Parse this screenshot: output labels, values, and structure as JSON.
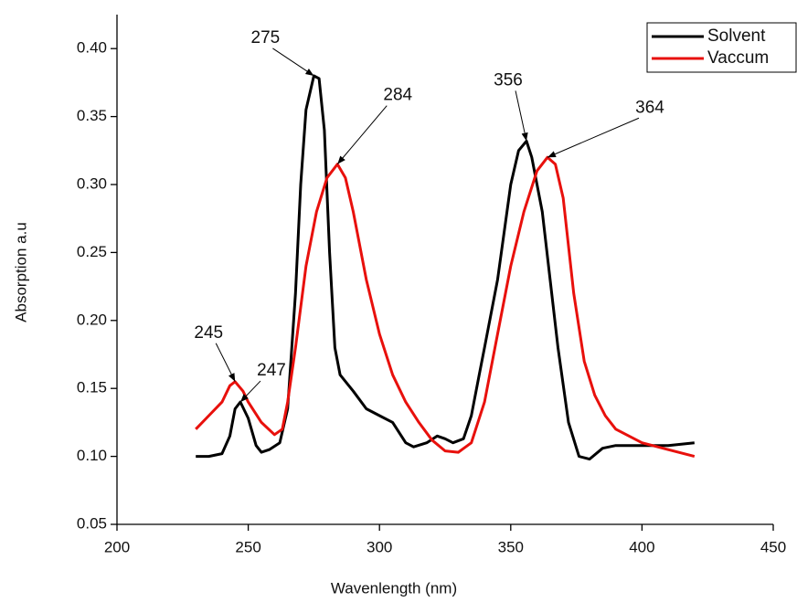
{
  "chart_data": {
    "type": "line",
    "x_label": "Wavenlength (nm)",
    "y_label": "Absorption a.u",
    "xlim": [
      200,
      450
    ],
    "ylim": [
      0.05,
      0.425
    ],
    "xticks": [
      200,
      250,
      300,
      350,
      400,
      450
    ],
    "yticks": [
      {
        "value": 0.05,
        "label": "0.05"
      },
      {
        "value": 0.1,
        "label": "0.10"
      },
      {
        "value": 0.15,
        "label": "0.15"
      },
      {
        "value": 0.2,
        "label": "0.20"
      },
      {
        "value": 0.25,
        "label": "0.25"
      },
      {
        "value": 0.3,
        "label": "0.30"
      },
      {
        "value": 0.35,
        "label": "0.35"
      },
      {
        "value": 0.4,
        "label": "0.40"
      }
    ],
    "grid": false,
    "legend": "top-right",
    "series": [
      {
        "name": "Solvent",
        "color": "#000000",
        "x": [
          230,
          235,
          240,
          243,
          245,
          247,
          250,
          253,
          255,
          258,
          262,
          265,
          268,
          270,
          272,
          275,
          277,
          279,
          281,
          283,
          285,
          290,
          295,
          300,
          305,
          310,
          313,
          318,
          322,
          325,
          328,
          332,
          335,
          338,
          340,
          345,
          350,
          353,
          356,
          358,
          362,
          365,
          368,
          372,
          376,
          380,
          385,
          390,
          400,
          410,
          420
        ],
        "values": [
          0.1,
          0.1,
          0.102,
          0.115,
          0.135,
          0.14,
          0.128,
          0.108,
          0.103,
          0.105,
          0.11,
          0.135,
          0.22,
          0.3,
          0.355,
          0.38,
          0.378,
          0.34,
          0.25,
          0.18,
          0.16,
          0.148,
          0.135,
          0.13,
          0.125,
          0.11,
          0.107,
          0.11,
          0.115,
          0.113,
          0.11,
          0.113,
          0.13,
          0.16,
          0.18,
          0.23,
          0.3,
          0.325,
          0.332,
          0.32,
          0.28,
          0.23,
          0.18,
          0.125,
          0.1,
          0.098,
          0.106,
          0.108,
          0.108,
          0.108,
          0.11
        ]
      },
      {
        "name": "Vaccum",
        "color": "#e8100c",
        "x": [
          230,
          235,
          240,
          243,
          245,
          248,
          250,
          255,
          260,
          263,
          265,
          268,
          272,
          276,
          280,
          284,
          287,
          290,
          295,
          300,
          305,
          310,
          315,
          320,
          325,
          330,
          335,
          340,
          345,
          350,
          355,
          360,
          364,
          367,
          370,
          374,
          378,
          382,
          386,
          390,
          400,
          410,
          420
        ],
        "values": [
          0.12,
          0.13,
          0.14,
          0.152,
          0.155,
          0.148,
          0.14,
          0.125,
          0.116,
          0.12,
          0.14,
          0.18,
          0.24,
          0.28,
          0.305,
          0.315,
          0.305,
          0.28,
          0.23,
          0.19,
          0.16,
          0.14,
          0.125,
          0.112,
          0.104,
          0.103,
          0.11,
          0.14,
          0.19,
          0.24,
          0.28,
          0.31,
          0.32,
          0.315,
          0.29,
          0.22,
          0.17,
          0.145,
          0.13,
          0.12,
          0.11,
          0.105,
          0.1
        ]
      }
    ],
    "annotations": [
      {
        "text": "245",
        "x": 245,
        "y": 0.155
      },
      {
        "text": "247",
        "x": 247,
        "y": 0.14
      },
      {
        "text": "275",
        "x": 275,
        "y": 0.38
      },
      {
        "text": "284",
        "x": 284,
        "y": 0.315
      },
      {
        "text": "356",
        "x": 356,
        "y": 0.332
      },
      {
        "text": "364",
        "x": 364,
        "y": 0.32
      }
    ]
  }
}
